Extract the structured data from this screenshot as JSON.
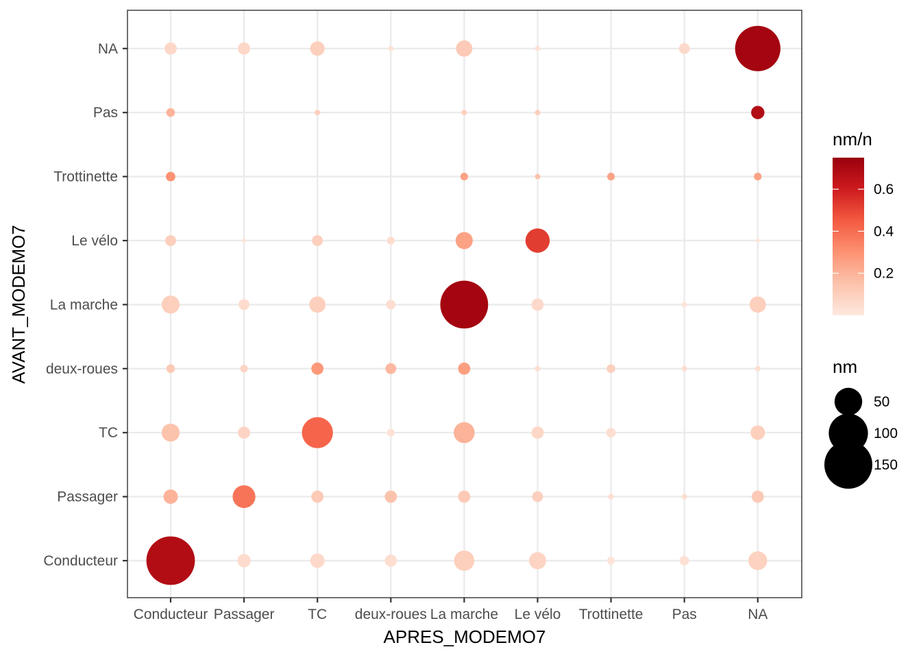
{
  "chart_data": {
    "type": "scatter",
    "xlabel": "APRES_MODEMO7",
    "ylabel": "AVANT_MODEMO7",
    "x_categories": [
      "Conducteur",
      "Passager",
      "TC",
      "deux-roues",
      "La marche",
      "Le vélo",
      "Trottinette",
      "Pas",
      "NA"
    ],
    "y_categories": [
      "Conducteur",
      "Passager",
      "TC",
      "deux-roues",
      "La marche",
      "Le vélo",
      "Trottinette",
      "Pas",
      "NA"
    ],
    "size_variable": "nm",
    "color_variable": "nm/n",
    "color_legend": {
      "title": "nm/n",
      "breaks": [
        0.2,
        0.4,
        0.6
      ],
      "range": [
        0.0,
        0.75
      ],
      "low_color": "#FEE8DF",
      "high_color": "#99000D"
    },
    "size_legend": {
      "title": "nm",
      "breaks": [
        50,
        100,
        150
      ]
    },
    "grid": true,
    "legend_position": "right",
    "points": [
      {
        "x": "Conducteur",
        "y": "NA",
        "nm": 10,
        "ratio": 0.07
      },
      {
        "x": "Passager",
        "y": "NA",
        "nm": 10,
        "ratio": 0.07
      },
      {
        "x": "TC",
        "y": "NA",
        "nm": 14,
        "ratio": 0.1
      },
      {
        "x": "deux-roues",
        "y": "NA",
        "nm": 2,
        "ratio": 0.02
      },
      {
        "x": "La marche",
        "y": "NA",
        "nm": 18,
        "ratio": 0.12
      },
      {
        "x": "Le vélo",
        "y": "NA",
        "nm": 2,
        "ratio": 0.02
      },
      {
        "x": "Pas",
        "y": "NA",
        "nm": 8,
        "ratio": 0.06
      },
      {
        "x": "NA",
        "y": "NA",
        "nm": 140,
        "ratio": 0.72
      },
      {
        "x": "Conducteur",
        "y": "Pas",
        "nm": 5,
        "ratio": 0.2
      },
      {
        "x": "TC",
        "y": "Pas",
        "nm": 2,
        "ratio": 0.1
      },
      {
        "x": "La marche",
        "y": "Pas",
        "nm": 2,
        "ratio": 0.1
      },
      {
        "x": "Le vélo",
        "y": "Pas",
        "nm": 2,
        "ratio": 0.1
      },
      {
        "x": "NA",
        "y": "Pas",
        "nm": 12,
        "ratio": 0.68
      },
      {
        "x": "Conducteur",
        "y": "Trottinette",
        "nm": 6,
        "ratio": 0.3
      },
      {
        "x": "La marche",
        "y": "Trottinette",
        "nm": 4,
        "ratio": 0.25
      },
      {
        "x": "Le vélo",
        "y": "Trottinette",
        "nm": 2,
        "ratio": 0.15
      },
      {
        "x": "Trottinette",
        "y": "Trottinette",
        "nm": 4,
        "ratio": 0.25
      },
      {
        "x": "NA",
        "y": "Trottinette",
        "nm": 4,
        "ratio": 0.25
      },
      {
        "x": "Conducteur",
        "y": "Le vélo",
        "nm": 8,
        "ratio": 0.1
      },
      {
        "x": "Passager",
        "y": "Le vélo",
        "nm": 1,
        "ratio": 0.03
      },
      {
        "x": "TC",
        "y": "Le vélo",
        "nm": 8,
        "ratio": 0.1
      },
      {
        "x": "deux-roues",
        "y": "Le vélo",
        "nm": 4,
        "ratio": 0.05
      },
      {
        "x": "La marche",
        "y": "Le vélo",
        "nm": 20,
        "ratio": 0.25
      },
      {
        "x": "Le vélo",
        "y": "Le vélo",
        "nm": 40,
        "ratio": 0.52
      },
      {
        "x": "NA",
        "y": "Le vélo",
        "nm": 1,
        "ratio": 0.03
      },
      {
        "x": "Conducteur",
        "y": "La marche",
        "nm": 22,
        "ratio": 0.1
      },
      {
        "x": "Passager",
        "y": "La marche",
        "nm": 8,
        "ratio": 0.05
      },
      {
        "x": "TC",
        "y": "La marche",
        "nm": 18,
        "ratio": 0.1
      },
      {
        "x": "deux-roues",
        "y": "La marche",
        "nm": 6,
        "ratio": 0.04
      },
      {
        "x": "La marche",
        "y": "La marche",
        "nm": 155,
        "ratio": 0.72
      },
      {
        "x": "Le vélo",
        "y": "La marche",
        "nm": 10,
        "ratio": 0.06
      },
      {
        "x": "Pas",
        "y": "La marche",
        "nm": 2,
        "ratio": 0.02
      },
      {
        "x": "NA",
        "y": "La marche",
        "nm": 18,
        "ratio": 0.1
      },
      {
        "x": "Conducteur",
        "y": "deux-roues",
        "nm": 5,
        "ratio": 0.12
      },
      {
        "x": "Passager",
        "y": "deux-roues",
        "nm": 4,
        "ratio": 0.08
      },
      {
        "x": "TC",
        "y": "deux-roues",
        "nm": 10,
        "ratio": 0.28
      },
      {
        "x": "deux-roues",
        "y": "deux-roues",
        "nm": 8,
        "ratio": 0.18
      },
      {
        "x": "La marche",
        "y": "deux-roues",
        "nm": 10,
        "ratio": 0.26
      },
      {
        "x": "Le vélo",
        "y": "deux-roues",
        "nm": 2,
        "ratio": 0.04
      },
      {
        "x": "Trottinette",
        "y": "deux-roues",
        "nm": 5,
        "ratio": 0.1
      },
      {
        "x": "Pas",
        "y": "deux-roues",
        "nm": 2,
        "ratio": 0.04
      },
      {
        "x": "NA",
        "y": "deux-roues",
        "nm": 2,
        "ratio": 0.04
      },
      {
        "x": "Conducteur",
        "y": "TC",
        "nm": 22,
        "ratio": 0.15
      },
      {
        "x": "Passager",
        "y": "TC",
        "nm": 10,
        "ratio": 0.08
      },
      {
        "x": "TC",
        "y": "TC",
        "nm": 65,
        "ratio": 0.42
      },
      {
        "x": "deux-roues",
        "y": "TC",
        "nm": 4,
        "ratio": 0.03
      },
      {
        "x": "La marche",
        "y": "TC",
        "nm": 30,
        "ratio": 0.2
      },
      {
        "x": "Le vélo",
        "y": "TC",
        "nm": 10,
        "ratio": 0.07
      },
      {
        "x": "Trottinette",
        "y": "TC",
        "nm": 6,
        "ratio": 0.04
      },
      {
        "x": "NA",
        "y": "TC",
        "nm": 14,
        "ratio": 0.1
      },
      {
        "x": "Conducteur",
        "y": "Passager",
        "nm": 14,
        "ratio": 0.2
      },
      {
        "x": "Passager",
        "y": "Passager",
        "nm": 35,
        "ratio": 0.38
      },
      {
        "x": "TC",
        "y": "Passager",
        "nm": 10,
        "ratio": 0.12
      },
      {
        "x": "deux-roues",
        "y": "Passager",
        "nm": 10,
        "ratio": 0.15
      },
      {
        "x": "La marche",
        "y": "Passager",
        "nm": 10,
        "ratio": 0.12
      },
      {
        "x": "Le vélo",
        "y": "Passager",
        "nm": 8,
        "ratio": 0.1
      },
      {
        "x": "Trottinette",
        "y": "Passager",
        "nm": 2,
        "ratio": 0.04
      },
      {
        "x": "Pas",
        "y": "Passager",
        "nm": 2,
        "ratio": 0.04
      },
      {
        "x": "NA",
        "y": "Passager",
        "nm": 10,
        "ratio": 0.12
      },
      {
        "x": "Conducteur",
        "y": "Conducteur",
        "nm": 160,
        "ratio": 0.68
      },
      {
        "x": "Passager",
        "y": "Conducteur",
        "nm": 12,
        "ratio": 0.05
      },
      {
        "x": "TC",
        "y": "Conducteur",
        "nm": 14,
        "ratio": 0.06
      },
      {
        "x": "deux-roues",
        "y": "Conducteur",
        "nm": 10,
        "ratio": 0.04
      },
      {
        "x": "La marche",
        "y": "Conducteur",
        "nm": 28,
        "ratio": 0.1
      },
      {
        "x": "Le vélo",
        "y": "Conducteur",
        "nm": 20,
        "ratio": 0.08
      },
      {
        "x": "Trottinette",
        "y": "Conducteur",
        "nm": 4,
        "ratio": 0.02
      },
      {
        "x": "Pas",
        "y": "Conducteur",
        "nm": 6,
        "ratio": 0.03
      },
      {
        "x": "NA",
        "y": "Conducteur",
        "nm": 24,
        "ratio": 0.09
      }
    ]
  }
}
